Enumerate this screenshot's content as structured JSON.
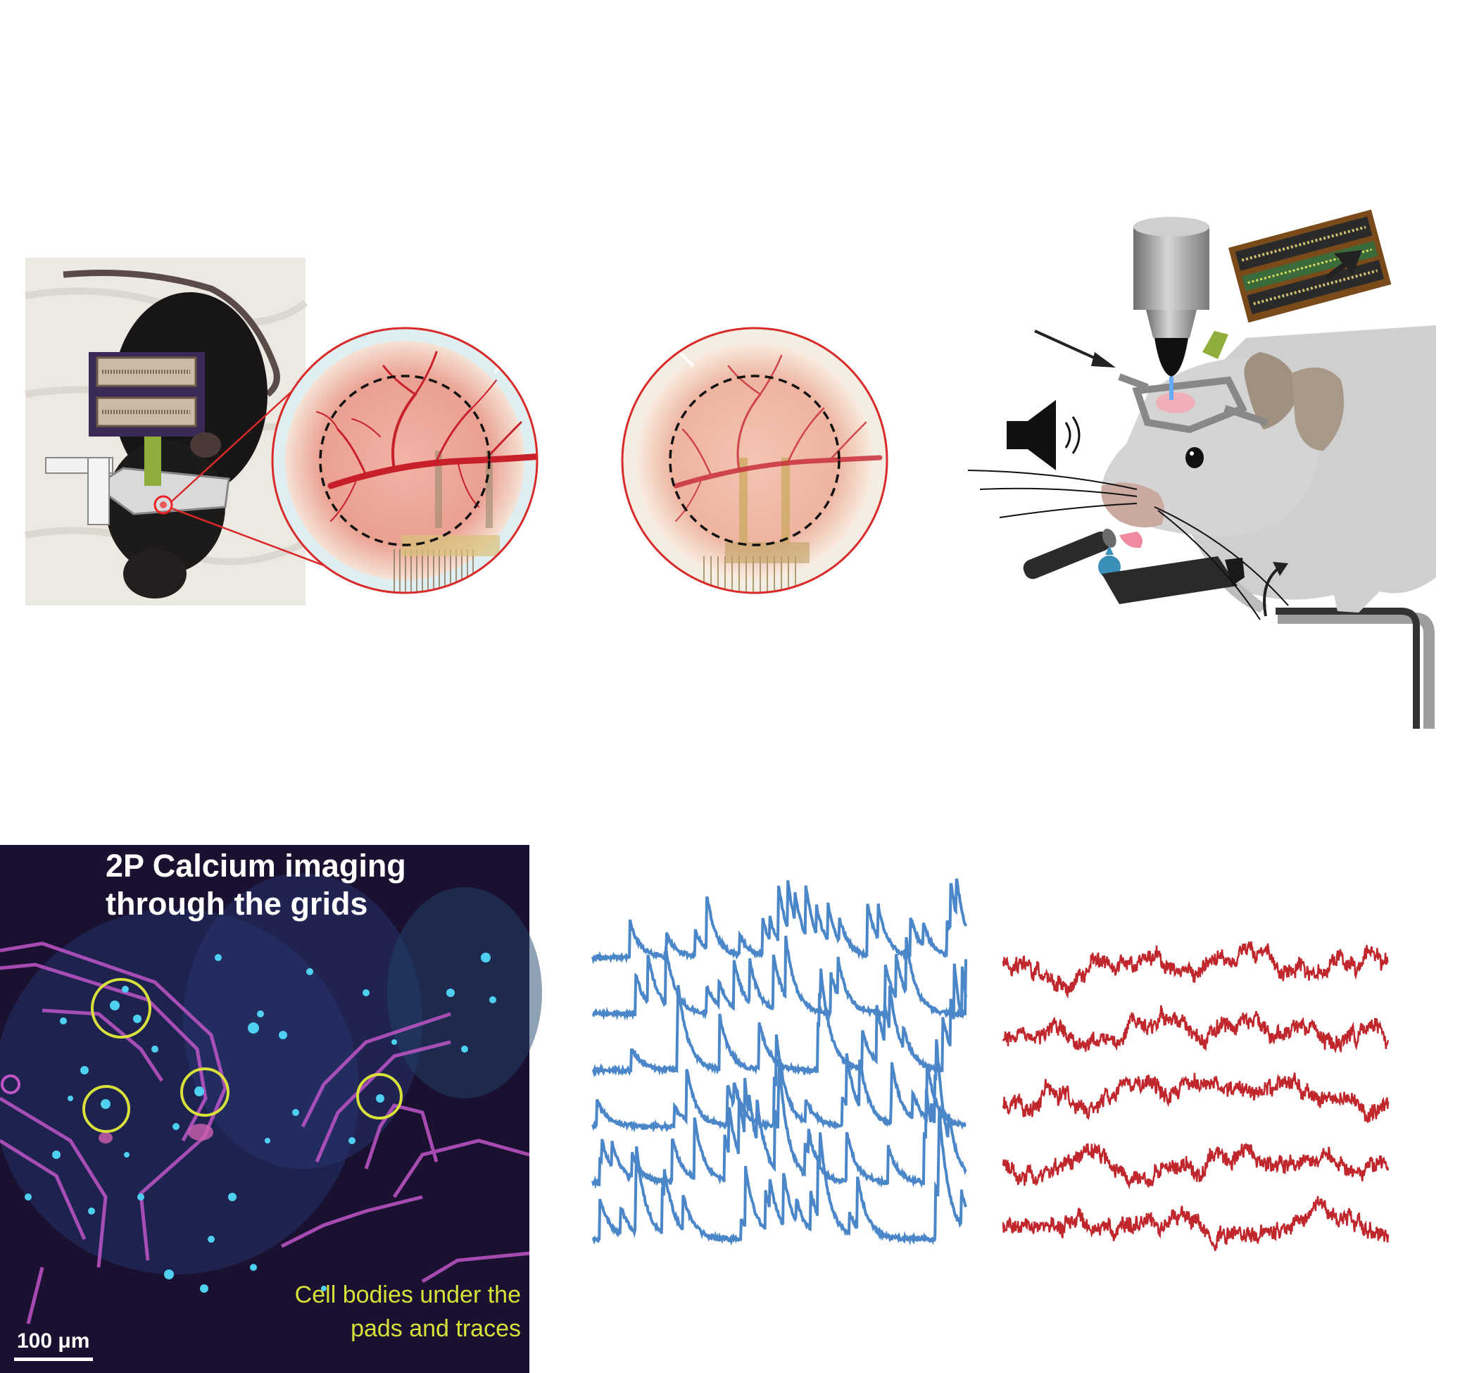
{
  "calcium_panel": {
    "title_line1": "2P Calcium imaging",
    "title_line2": "through the grids",
    "caption_line1": "Cell bodies under the",
    "caption_line2": "pads and traces",
    "scale_bar_label": "100 μm",
    "circle_color": "#d8e03a",
    "background_color": "#1a1030",
    "cell_color": "#4fd0f0",
    "grid_trace_color": "#c055c8"
  },
  "zoom_panel": {
    "outline_color": "#d92a2a",
    "vessel_color": "#c8202a",
    "dashed_circle_color": "#111111"
  },
  "schematic": {
    "mouse_color": "#cfcfcf",
    "ear_color": "#a09080",
    "objective_color": "#8c8c8c",
    "pcb_color": "#7a4a1a",
    "arrow_color": "#222222"
  },
  "traces": {
    "calcium_color": "#4a86c8",
    "electrophys_color": "#c0272d",
    "calcium_trace_count": 6,
    "electrophys_trace_count": 5
  }
}
